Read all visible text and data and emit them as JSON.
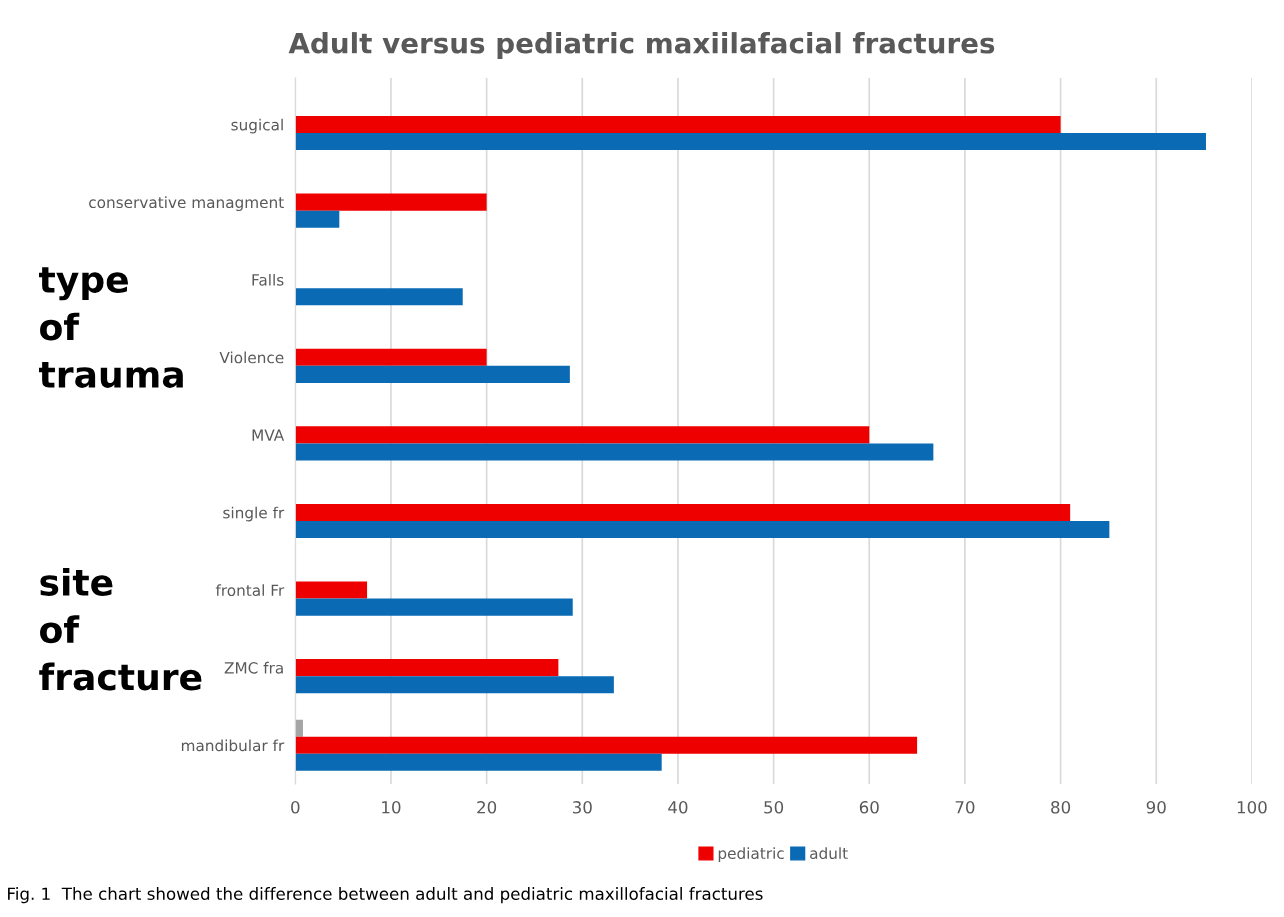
{
  "chart_data": {
    "type": "bar",
    "orientation": "horizontal",
    "title": "Adult versus pediatric maxiilafacial fractures",
    "categories": [
      "sugical",
      "conservative managment",
      "Falls",
      "Violence",
      "MVA",
      "single fr",
      "frontal Fr",
      "ZMC fra",
      "mandibular fr"
    ],
    "series": [
      {
        "color": "#a5a5a5",
        "values": [
          null,
          null,
          null,
          null,
          null,
          null,
          null,
          null,
          0.8
        ]
      },
      {
        "name": "pediatric",
        "color": "#ee0000",
        "values": [
          80,
          20,
          null,
          20,
          60,
          81,
          7.5,
          27.5,
          65
        ]
      },
      {
        "name": "adult",
        "color": "#0a6ab4",
        "values": [
          95.2,
          4.6,
          17.5,
          28.7,
          66.7,
          85.1,
          29,
          33.3,
          38.3
        ]
      }
    ],
    "xlim": [
      0,
      100
    ],
    "xticks": [
      0,
      10,
      20,
      30,
      40,
      50,
      60,
      70,
      80,
      90,
      100
    ],
    "grid": "x",
    "legend": "bottom",
    "annotations": [
      "type\nof\ntrauma",
      "site\nof\nfracture",
      "Fig. 1  The chart showed the difference between adult and pediatric maxillofacial fractures"
    ]
  }
}
